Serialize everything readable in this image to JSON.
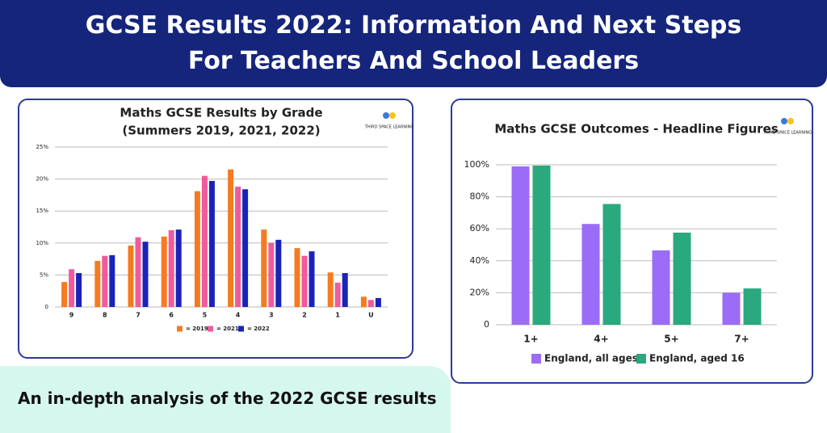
{
  "header": {
    "title": "GCSE Results 2022: Information And Next Steps For Teachers And School Leaders"
  },
  "banner": "An in-depth analysis of the 2022 GCSE results",
  "brand": "THIRD SPACE LEARNING",
  "chart_data": [
    {
      "type": "bar",
      "title": "Maths GCSE Results by Grade",
      "subtitle": "(Summers 2019, 2021, 2022)",
      "categories": [
        "9",
        "8",
        "7",
        "6",
        "5",
        "4",
        "3",
        "2",
        "1",
        "U"
      ],
      "series": [
        {
          "name": "= 2019",
          "color": "#f47b20",
          "values": [
            3.9,
            7.2,
            9.6,
            11.0,
            18.1,
            21.5,
            12.1,
            9.2,
            5.4,
            1.6
          ]
        },
        {
          "name": "= 2021",
          "color": "#ef5b9c",
          "values": [
            5.9,
            8.0,
            10.9,
            12.0,
            20.5,
            18.8,
            10.0,
            8.0,
            3.8,
            1.1
          ]
        },
        {
          "name": "= 2022",
          "color": "#1a23b8",
          "values": [
            5.3,
            8.1,
            10.2,
            12.1,
            19.7,
            18.4,
            10.5,
            8.7,
            5.3,
            1.4
          ]
        }
      ],
      "ylim": [
        0,
        25
      ],
      "yticks": [
        0,
        {
          "value": 5,
          "label": "5%"
        },
        {
          "value": 10,
          "label": "10%"
        },
        {
          "value": 15,
          "label": "15%"
        },
        {
          "value": 20,
          "label": "20%"
        },
        {
          "value": 25,
          "label": "25%"
        }
      ],
      "grid": true,
      "legend": "bottom"
    },
    {
      "type": "bar",
      "title": "Maths GCSE Outcomes - Headline Figures",
      "categories": [
        "1+",
        "4+",
        "5+",
        "7+"
      ],
      "series": [
        {
          "name": "England, all ages",
          "color": "#9b6cf5",
          "values": [
            99,
            63,
            46.5,
            20
          ]
        },
        {
          "name": "England, aged 16",
          "color": "#2aa87e",
          "values": [
            99.5,
            75.5,
            57.6,
            22.7
          ]
        }
      ],
      "ylim": [
        0,
        100
      ],
      "yticks": [
        0,
        {
          "value": 20,
          "label": "20%"
        },
        {
          "value": 40,
          "label": "40%"
        },
        {
          "value": 60,
          "label": "60%"
        },
        {
          "value": 80,
          "label": "80%"
        },
        {
          "value": 100,
          "label": "100%"
        }
      ],
      "grid": true,
      "legend": "bottom"
    }
  ]
}
